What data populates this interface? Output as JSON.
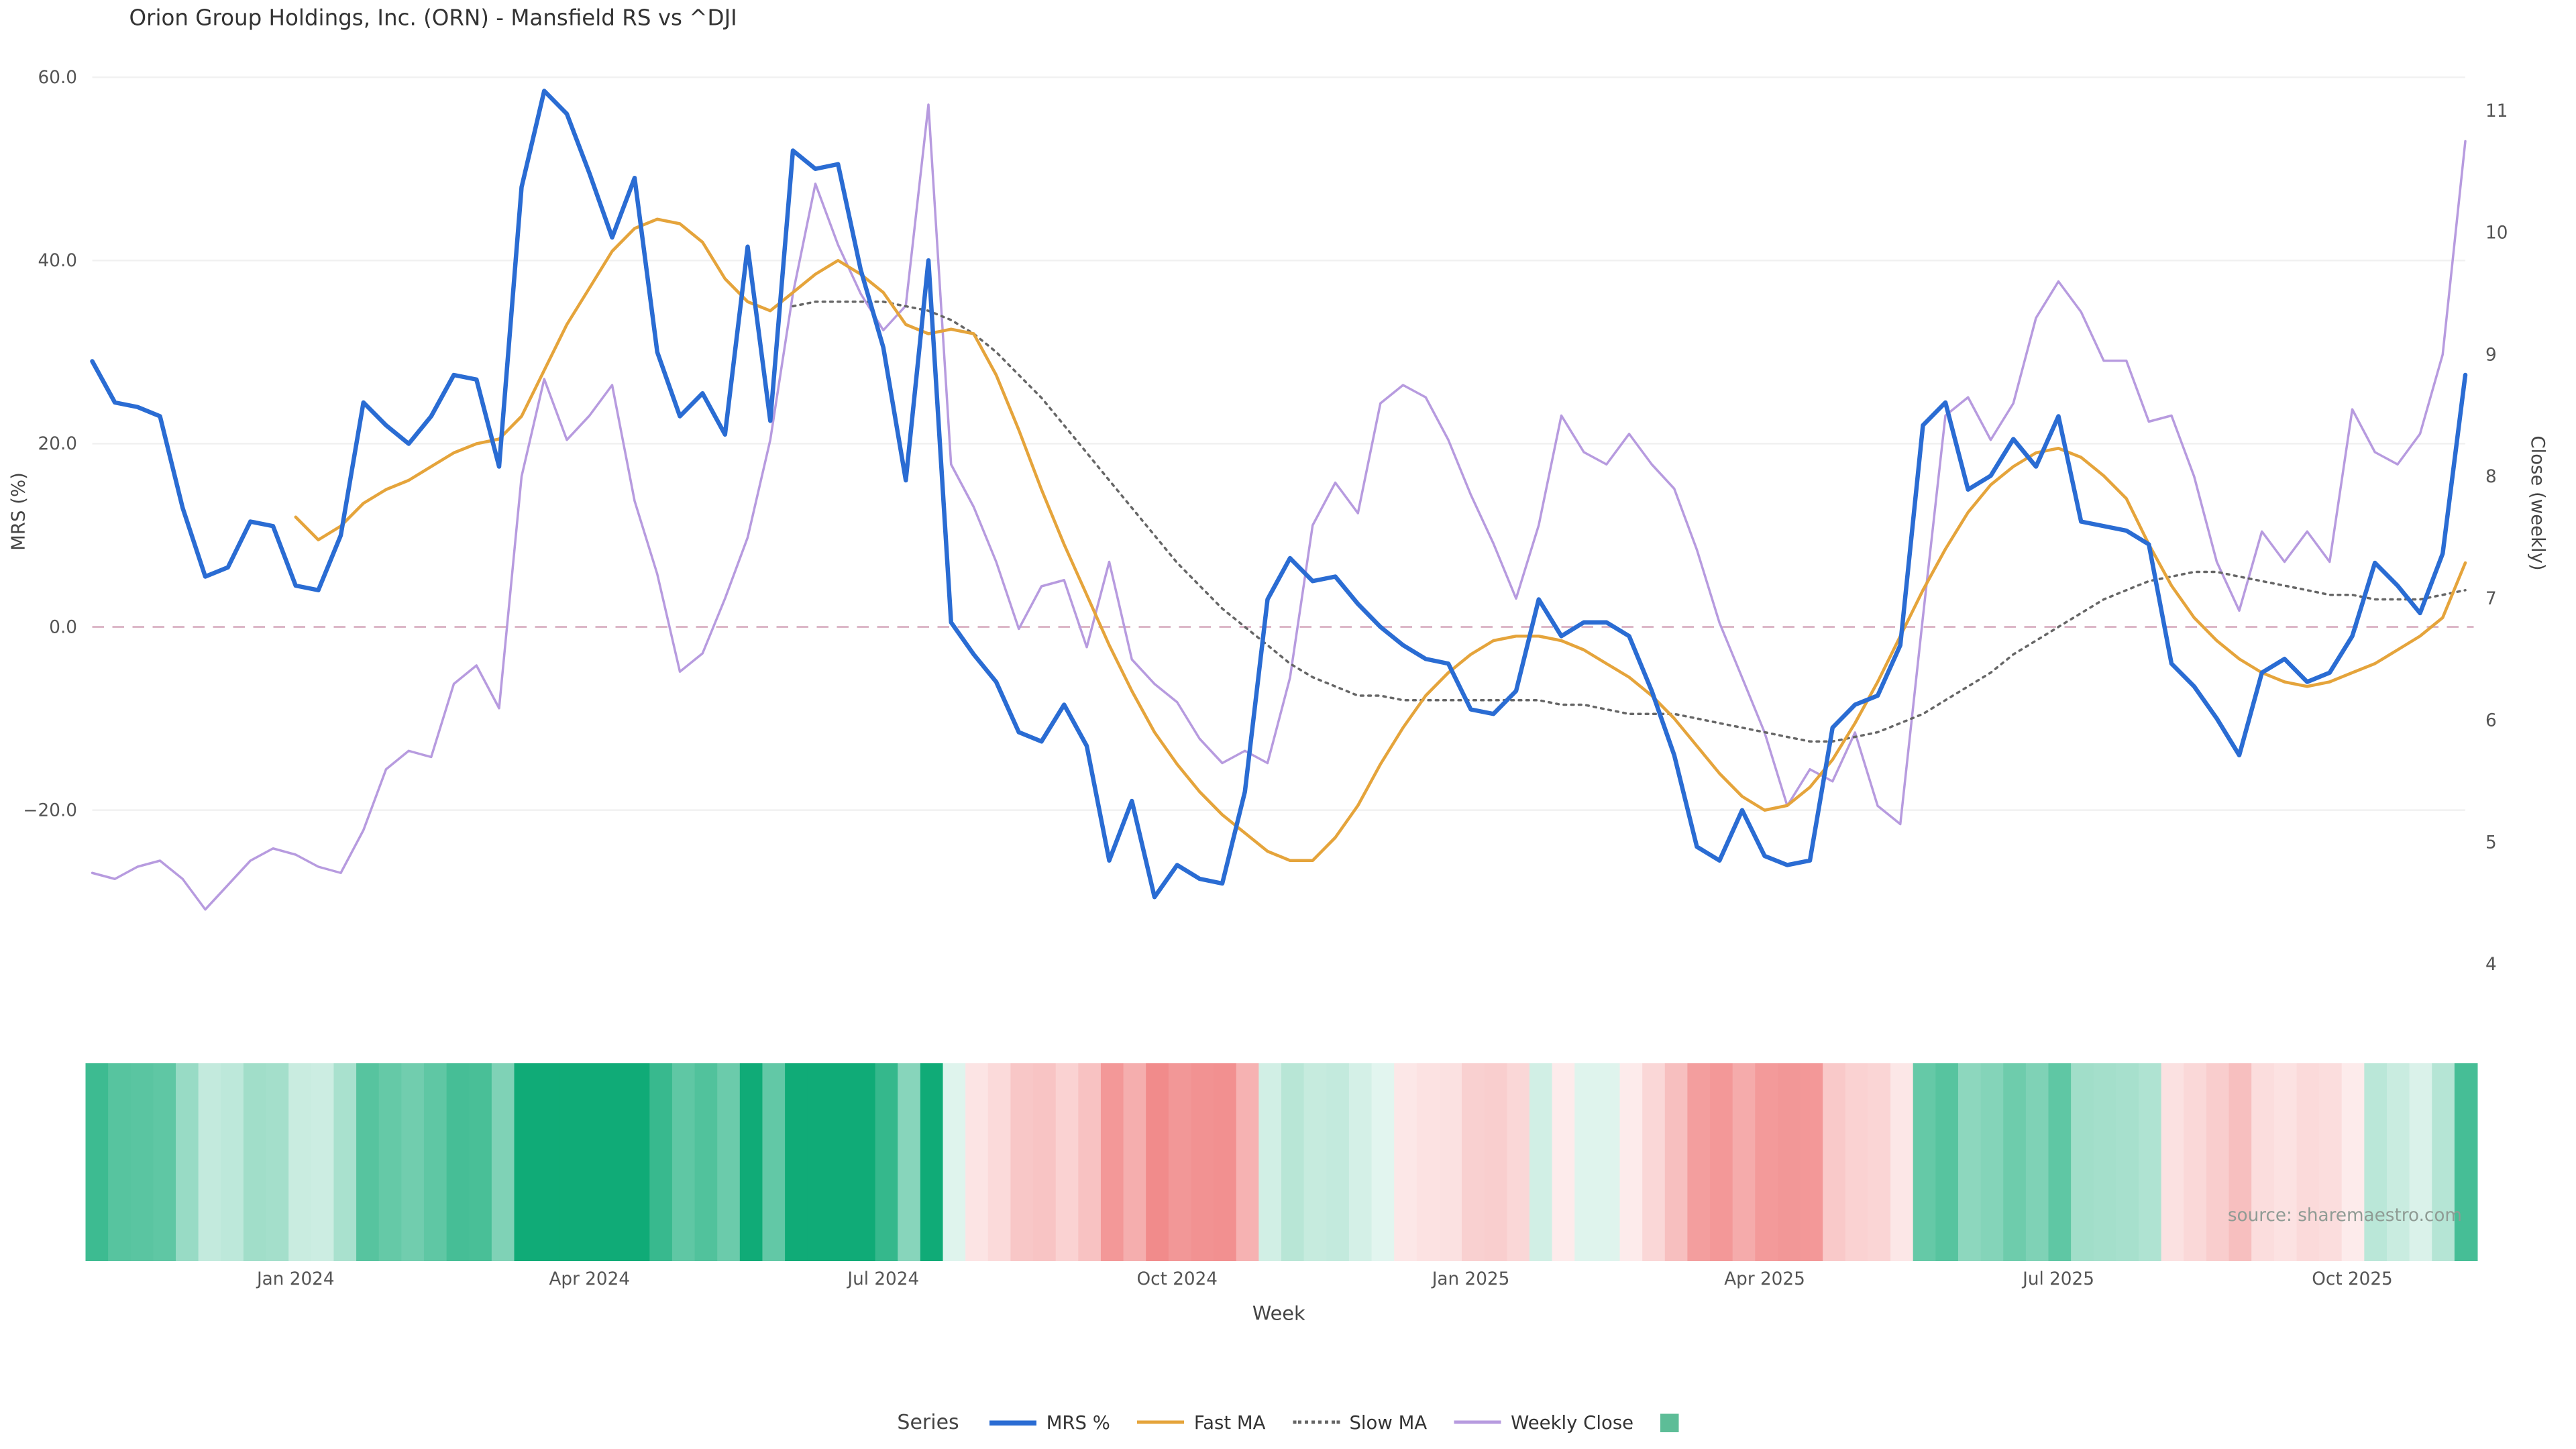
{
  "title": "Orion Group Holdings, Inc. (ORN) - Mansfield RS vs ^DJI",
  "source": "source: sharemaestro.com",
  "chart_data": {
    "type": "line",
    "x_unit": "week",
    "n_points": 106,
    "axes": {
      "x_label": "Week",
      "y_left_label": "MRS (%)",
      "y_right_label": "Close (weekly)",
      "y_left_range": [
        -41,
        61
      ],
      "y_right_range": [
        3.7,
        11.3
      ],
      "y_left_ticks": [
        {
          "label": "60.0",
          "value": 60
        },
        {
          "label": "40.0",
          "value": 40
        },
        {
          "label": "20.0",
          "value": 20
        },
        {
          "label": "0.0",
          "value": 0
        },
        {
          "label": "−20.0",
          "value": -20
        }
      ],
      "y_right_ticks": [
        {
          "label": "11",
          "value": 11
        },
        {
          "label": "10",
          "value": 10
        },
        {
          "label": "9",
          "value": 9
        },
        {
          "label": "8",
          "value": 8
        },
        {
          "label": "7",
          "value": 7
        },
        {
          "label": "6",
          "value": 6
        },
        {
          "label": "5",
          "value": 5
        },
        {
          "label": "4",
          "value": 4
        }
      ],
      "x_ticks": [
        {
          "label": "Jan 2024",
          "week": 9
        },
        {
          "label": "Apr 2024",
          "week": 22
        },
        {
          "label": "Jul 2024",
          "week": 35
        },
        {
          "label": "Oct 2024",
          "week": 48
        },
        {
          "label": "Jan 2025",
          "week": 61
        },
        {
          "label": "Apr 2025",
          "week": 74
        },
        {
          "label": "Jul 2025",
          "week": 87
        },
        {
          "label": "Oct 2025",
          "week": 100
        }
      ]
    },
    "legend": {
      "title": "Series",
      "items": [
        {
          "label": "MRS %",
          "swatch": "thick-line",
          "color": "#2a6cd3"
        },
        {
          "label": "Fast MA",
          "swatch": "line",
          "color": "#e5a43b"
        },
        {
          "label": "Slow MA",
          "swatch": "dotted-line",
          "color": "#666666"
        },
        {
          "label": "Weekly Close",
          "swatch": "line",
          "color": "#b79bdf"
        },
        {
          "label": "",
          "swatch": "square",
          "color": "#5dbd97"
        }
      ]
    },
    "zero_line": {
      "value": 0,
      "color": "#dcb8c8",
      "style": "dashed"
    },
    "series": [
      {
        "name": "MRS %",
        "data_name": "mrs-line",
        "axis": "left",
        "color": "#2a6cd3",
        "style": "solid",
        "width": 2.6,
        "values": [
          29,
          24.5,
          24,
          23,
          13,
          5.5,
          6.5,
          11.5,
          11,
          4.5,
          4,
          10,
          24.5,
          22,
          20,
          23,
          27.5,
          27,
          17.5,
          48,
          58.5,
          56,
          49.5,
          42.5,
          49,
          30,
          23,
          25.5,
          21,
          41.5,
          22.5,
          52,
          50,
          50.5,
          39,
          30.5,
          16,
          40,
          0.5,
          -3,
          -6,
          -11.5,
          -12.5,
          -8.5,
          -13,
          -25.5,
          -19,
          -29.5,
          -26,
          -27.5,
          -28,
          -18,
          3,
          7.5,
          5,
          5.5,
          2.5,
          0,
          -2,
          -3.5,
          -4,
          -9,
          -9.5,
          -7,
          3,
          -1,
          0.5,
          0.5,
          -1,
          -7,
          -14,
          -24,
          -25.5,
          -20,
          -25,
          -26,
          -25.5,
          -11,
          -8.5,
          -7.5,
          -2,
          22,
          24.5,
          15,
          16.5,
          20.5,
          17.5,
          23,
          11.5,
          11,
          10.5,
          9,
          -4,
          -6.5,
          -10,
          -14,
          -5,
          -3.5,
          -6,
          -5,
          -1,
          7,
          4.5,
          1.5,
          8,
          27.5
        ]
      },
      {
        "name": "Fast MA",
        "data_name": "fast-ma-line",
        "axis": "left",
        "color": "#e5a43b",
        "style": "solid",
        "width": 1.8,
        "values": [
          null,
          null,
          null,
          null,
          null,
          null,
          null,
          null,
          null,
          12,
          9.5,
          11,
          13.5,
          15,
          16,
          17.5,
          19,
          20,
          20.5,
          23,
          28,
          33,
          37,
          41,
          43.5,
          44.5,
          44,
          42,
          38,
          35.5,
          34.5,
          36.5,
          38.5,
          40,
          38.5,
          36.5,
          33,
          32,
          32.5,
          32,
          27.5,
          21.5,
          15,
          9,
          3.5,
          -2,
          -7,
          -11.5,
          -15,
          -18,
          -20.5,
          -22.5,
          -24.5,
          -25.5,
          -25.5,
          -23,
          -19.5,
          -15,
          -11,
          -7.5,
          -5,
          -3,
          -1.5,
          -1,
          -1,
          -1.5,
          -2.5,
          -4,
          -5.5,
          -7.5,
          -10,
          -13,
          -16,
          -18.5,
          -20,
          -19.5,
          -17.5,
          -14.5,
          -10.5,
          -6,
          -1,
          4,
          8.5,
          12.5,
          15.5,
          17.5,
          19,
          19.5,
          18.5,
          16.5,
          14,
          9,
          4.5,
          1,
          -1.5,
          -3.5,
          -5,
          -6,
          -6.5,
          -6,
          -5,
          -4,
          -2.5,
          -1,
          1,
          7
        ]
      },
      {
        "name": "Slow MA",
        "data_name": "slow-ma-line",
        "axis": "left",
        "color": "#666666",
        "style": "dotted",
        "width": 1.4,
        "values": [
          null,
          null,
          null,
          null,
          null,
          null,
          null,
          null,
          null,
          null,
          null,
          null,
          null,
          null,
          null,
          null,
          null,
          null,
          null,
          null,
          null,
          null,
          null,
          null,
          null,
          null,
          null,
          null,
          null,
          null,
          null,
          35,
          35.5,
          35.5,
          35.5,
          35.5,
          35,
          34.5,
          33.5,
          32,
          30,
          27.5,
          25,
          22,
          19,
          16,
          13,
          10,
          7,
          4.5,
          2,
          0,
          -2,
          -4,
          -5.5,
          -6.5,
          -7.5,
          -7.5,
          -8,
          -8,
          -8,
          -8,
          -8,
          -8,
          -8,
          -8.5,
          -8.5,
          -9,
          -9.5,
          -9.5,
          -9.5,
          -10,
          -10.5,
          -11,
          -11.5,
          -12,
          -12.5,
          -12.5,
          -12,
          -11.5,
          -10.5,
          -9.5,
          -8,
          -6.5,
          -5,
          -3,
          -1.5,
          0,
          1.5,
          3,
          4,
          5,
          5.5,
          6,
          6,
          5.5,
          5,
          4.5,
          4,
          3.5,
          3.5,
          3,
          3,
          3,
          3.5,
          4
        ]
      },
      {
        "name": "Weekly Close",
        "data_name": "weekly-close-line",
        "axis": "right",
        "color": "#b79bdf",
        "style": "solid",
        "width": 1.4,
        "values": [
          4.75,
          4.7,
          4.8,
          4.85,
          4.7,
          4.45,
          4.65,
          4.85,
          4.95,
          4.9,
          4.8,
          4.75,
          5.1,
          5.6,
          5.75,
          5.7,
          6.3,
          6.45,
          6.1,
          8.0,
          8.8,
          8.3,
          8.5,
          8.75,
          7.8,
          7.2,
          6.4,
          6.55,
          7.0,
          7.5,
          8.3,
          9.5,
          10.4,
          9.9,
          9.5,
          9.2,
          9.4,
          11.05,
          8.1,
          7.75,
          7.3,
          6.75,
          7.1,
          7.15,
          6.6,
          7.3,
          6.5,
          6.3,
          6.15,
          5.85,
          5.65,
          5.75,
          5.65,
          6.35,
          7.6,
          7.95,
          7.7,
          8.6,
          8.75,
          8.65,
          8.3,
          7.85,
          7.45,
          7.0,
          7.6,
          8.5,
          8.2,
          8.1,
          8.35,
          8.1,
          7.9,
          7.4,
          6.8,
          6.35,
          5.9,
          5.3,
          5.6,
          5.5,
          5.9,
          5.3,
          5.15,
          6.85,
          8.5,
          8.65,
          8.3,
          8.6,
          9.3,
          9.6,
          9.35,
          8.95,
          8.95,
          8.45,
          8.5,
          8.0,
          7.3,
          6.9,
          7.55,
          7.3,
          7.55,
          7.3,
          8.55,
          8.2,
          8.1,
          8.35,
          9.0,
          10.75
        ]
      }
    ],
    "heatmap": {
      "derived_from": "MRS %",
      "positive_color": "#10ab77",
      "negative_color": "#ee7272",
      "neutral_color": "#ffffff"
    }
  }
}
